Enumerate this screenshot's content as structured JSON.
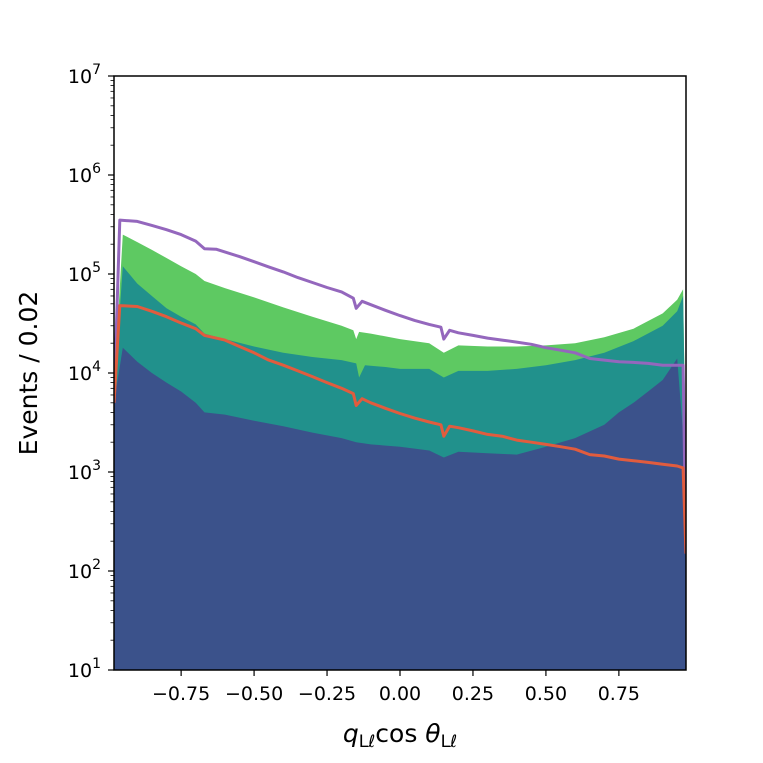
{
  "chart_data": {
    "type": "area",
    "ylabel": "Events / 0.02",
    "xlabel": {
      "base1": "q",
      "sub1": "Lℓ",
      "mid": "cos ",
      "base2": "θ",
      "sub2": "Lℓ"
    },
    "xlim": [
      -0.98,
      0.98
    ],
    "ylim": [
      10,
      10000000
    ],
    "yscale": "log",
    "grid": false,
    "x_ticks": [
      {
        "v": -0.75,
        "label": "−0.75"
      },
      {
        "v": -0.5,
        "label": "−0.50"
      },
      {
        "v": -0.25,
        "label": "−0.25"
      },
      {
        "v": 0.0,
        "label": "0.00"
      },
      {
        "v": 0.25,
        "label": "0.25"
      },
      {
        "v": 0.5,
        "label": "0.50"
      },
      {
        "v": 0.75,
        "label": "0.75"
      }
    ],
    "y_ticks": [
      {
        "v": 10,
        "base": "10",
        "exp": "1"
      },
      {
        "v": 100,
        "base": "10",
        "exp": "2"
      },
      {
        "v": 1000,
        "base": "10",
        "exp": "3"
      },
      {
        "v": 10000,
        "base": "10",
        "exp": "4"
      },
      {
        "v": 100000,
        "base": "10",
        "exp": "5"
      },
      {
        "v": 1000000,
        "base": "10",
        "exp": "6"
      },
      {
        "v": 10000000,
        "base": "10",
        "exp": "7"
      }
    ],
    "stacked_areas": [
      {
        "color": "#3b528b",
        "points": [
          [
            -0.98,
            5000
          ],
          [
            -0.95,
            18000
          ],
          [
            -0.9,
            13000
          ],
          [
            -0.85,
            10000
          ],
          [
            -0.8,
            8000
          ],
          [
            -0.75,
            6500
          ],
          [
            -0.7,
            5000
          ],
          [
            -0.67,
            4000
          ],
          [
            -0.6,
            3800
          ],
          [
            -0.5,
            3300
          ],
          [
            -0.4,
            2900
          ],
          [
            -0.3,
            2500
          ],
          [
            -0.2,
            2200
          ],
          [
            -0.15,
            2000
          ],
          [
            -0.1,
            1900
          ],
          [
            0.0,
            1800
          ],
          [
            0.1,
            1650
          ],
          [
            0.15,
            1400
          ],
          [
            0.2,
            1600
          ],
          [
            0.3,
            1550
          ],
          [
            0.4,
            1500
          ],
          [
            0.5,
            1800
          ],
          [
            0.6,
            2200
          ],
          [
            0.7,
            3000
          ],
          [
            0.75,
            4000
          ],
          [
            0.8,
            5000
          ],
          [
            0.85,
            6500
          ],
          [
            0.9,
            8500
          ],
          [
            0.95,
            14000
          ],
          [
            0.98,
            1000
          ]
        ]
      },
      {
        "color": "#21918c",
        "points": [
          [
            -0.98,
            6000
          ],
          [
            -0.95,
            120000
          ],
          [
            -0.9,
            80000
          ],
          [
            -0.85,
            60000
          ],
          [
            -0.8,
            45000
          ],
          [
            -0.75,
            37000
          ],
          [
            -0.7,
            31000
          ],
          [
            -0.67,
            25000
          ],
          [
            -0.6,
            22000
          ],
          [
            -0.5,
            18500
          ],
          [
            -0.4,
            16000
          ],
          [
            -0.3,
            14500
          ],
          [
            -0.2,
            13500
          ],
          [
            -0.15,
            12500
          ],
          [
            -0.14,
            9000
          ],
          [
            -0.12,
            12000
          ],
          [
            -0.05,
            11500
          ],
          [
            0.0,
            11000
          ],
          [
            0.1,
            11000
          ],
          [
            0.15,
            9000
          ],
          [
            0.2,
            10500
          ],
          [
            0.3,
            10500
          ],
          [
            0.4,
            11000
          ],
          [
            0.5,
            12000
          ],
          [
            0.6,
            13500
          ],
          [
            0.7,
            16000
          ],
          [
            0.8,
            21000
          ],
          [
            0.9,
            30000
          ],
          [
            0.95,
            42000
          ],
          [
            0.97,
            60000
          ],
          [
            0.98,
            1000
          ]
        ]
      },
      {
        "color": "#5ec962",
        "points": [
          [
            -0.98,
            7000
          ],
          [
            -0.95,
            250000
          ],
          [
            -0.9,
            210000
          ],
          [
            -0.85,
            175000
          ],
          [
            -0.8,
            145000
          ],
          [
            -0.75,
            120000
          ],
          [
            -0.7,
            100000
          ],
          [
            -0.67,
            85000
          ],
          [
            -0.6,
            72000
          ],
          [
            -0.5,
            58000
          ],
          [
            -0.4,
            46000
          ],
          [
            -0.3,
            37000
          ],
          [
            -0.2,
            30000
          ],
          [
            -0.16,
            27000
          ],
          [
            -0.15,
            22000
          ],
          [
            -0.14,
            26000
          ],
          [
            -0.1,
            25000
          ],
          [
            0.0,
            22000
          ],
          [
            0.1,
            20000
          ],
          [
            0.15,
            16000
          ],
          [
            0.2,
            19000
          ],
          [
            0.3,
            18500
          ],
          [
            0.4,
            18500
          ],
          [
            0.5,
            19000
          ],
          [
            0.6,
            20000
          ],
          [
            0.7,
            23000
          ],
          [
            0.8,
            28000
          ],
          [
            0.9,
            40000
          ],
          [
            0.95,
            55000
          ],
          [
            0.97,
            70000
          ],
          [
            0.98,
            1000
          ]
        ]
      }
    ],
    "series": [
      {
        "color": "#9467bd",
        "points": [
          [
            -0.98,
            5000
          ],
          [
            -0.96,
            350000
          ],
          [
            -0.9,
            340000
          ],
          [
            -0.85,
            310000
          ],
          [
            -0.8,
            280000
          ],
          [
            -0.75,
            250000
          ],
          [
            -0.7,
            215000
          ],
          [
            -0.67,
            180000
          ],
          [
            -0.63,
            178000
          ],
          [
            -0.55,
            150000
          ],
          [
            -0.5,
            133000
          ],
          [
            -0.45,
            118000
          ],
          [
            -0.4,
            105000
          ],
          [
            -0.35,
            92000
          ],
          [
            -0.3,
            82000
          ],
          [
            -0.25,
            73000
          ],
          [
            -0.2,
            66000
          ],
          [
            -0.16,
            57000
          ],
          [
            -0.15,
            45000
          ],
          [
            -0.13,
            53000
          ],
          [
            -0.1,
            49000
          ],
          [
            -0.05,
            43000
          ],
          [
            0.0,
            38000
          ],
          [
            0.05,
            34000
          ],
          [
            0.1,
            31000
          ],
          [
            0.14,
            29000
          ],
          [
            0.15,
            22000
          ],
          [
            0.17,
            27000
          ],
          [
            0.2,
            25500
          ],
          [
            0.25,
            24000
          ],
          [
            0.3,
            22500
          ],
          [
            0.35,
            21500
          ],
          [
            0.4,
            20500
          ],
          [
            0.45,
            19500
          ],
          [
            0.5,
            18000
          ],
          [
            0.55,
            17000
          ],
          [
            0.6,
            16000
          ],
          [
            0.65,
            14000
          ],
          [
            0.7,
            13500
          ],
          [
            0.75,
            13000
          ],
          [
            0.8,
            12800
          ],
          [
            0.85,
            12500
          ],
          [
            0.9,
            12000
          ],
          [
            0.95,
            12000
          ],
          [
            0.97,
            12000
          ],
          [
            0.98,
            150
          ]
        ]
      },
      {
        "color": "#e15c3e",
        "points": [
          [
            -0.98,
            5000
          ],
          [
            -0.96,
            48000
          ],
          [
            -0.9,
            47000
          ],
          [
            -0.85,
            42000
          ],
          [
            -0.8,
            37000
          ],
          [
            -0.75,
            32000
          ],
          [
            -0.7,
            28000
          ],
          [
            -0.67,
            24000
          ],
          [
            -0.6,
            21500
          ],
          [
            -0.55,
            18500
          ],
          [
            -0.5,
            16000
          ],
          [
            -0.45,
            13500
          ],
          [
            -0.4,
            12000
          ],
          [
            -0.35,
            10500
          ],
          [
            -0.3,
            9200
          ],
          [
            -0.25,
            8000
          ],
          [
            -0.2,
            7000
          ],
          [
            -0.16,
            6200
          ],
          [
            -0.15,
            4700
          ],
          [
            -0.13,
            5500
          ],
          [
            -0.1,
            5000
          ],
          [
            -0.05,
            4400
          ],
          [
            0.0,
            3900
          ],
          [
            0.05,
            3500
          ],
          [
            0.1,
            3200
          ],
          [
            0.14,
            3000
          ],
          [
            0.15,
            2300
          ],
          [
            0.17,
            2900
          ],
          [
            0.2,
            2800
          ],
          [
            0.25,
            2600
          ],
          [
            0.3,
            2400
          ],
          [
            0.35,
            2300
          ],
          [
            0.4,
            2100
          ],
          [
            0.45,
            2000
          ],
          [
            0.5,
            1900
          ],
          [
            0.55,
            1800
          ],
          [
            0.6,
            1700
          ],
          [
            0.65,
            1500
          ],
          [
            0.7,
            1450
          ],
          [
            0.75,
            1350
          ],
          [
            0.8,
            1300
          ],
          [
            0.85,
            1250
          ],
          [
            0.9,
            1200
          ],
          [
            0.95,
            1150
          ],
          [
            0.97,
            1100
          ],
          [
            0.98,
            150
          ]
        ]
      }
    ]
  }
}
